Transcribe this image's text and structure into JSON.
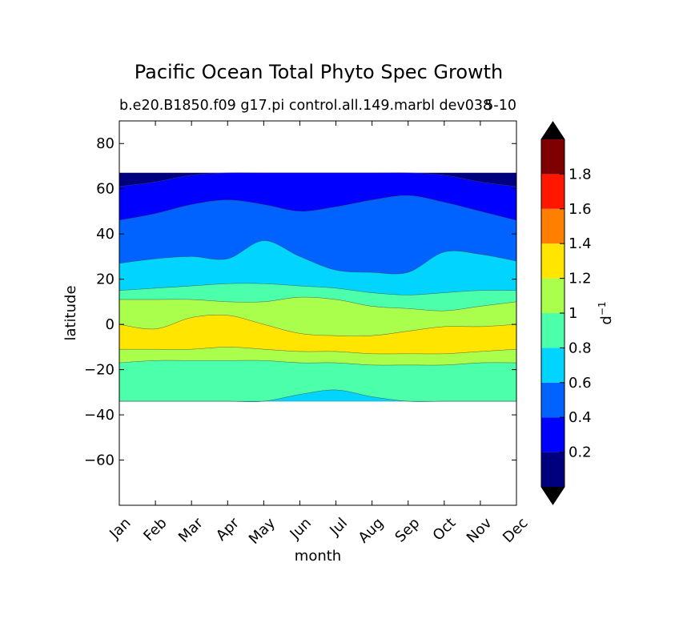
{
  "chart_data": {
    "type": "heatmap",
    "title": "Pacific Ocean Total Phyto Spec Growth",
    "subtitle_left": "b.e20.B1850.f09 g17.pi control.all.149.marbl dev038",
    "subtitle_right": "5-10",
    "xlabel": "month",
    "ylabel": "latitude",
    "x_categories": [
      "Jan",
      "Feb",
      "Mar",
      "Apr",
      "May",
      "Jun",
      "Jul",
      "Aug",
      "Sep",
      "Oct",
      "Nov",
      "Dec"
    ],
    "xlim": [
      1,
      12
    ],
    "ylim": [
      -80,
      90
    ],
    "y_ticks": [
      80,
      60,
      40,
      20,
      0,
      -20,
      -40,
      -60
    ],
    "y_tick_labels": [
      "80",
      "60",
      "40",
      "20",
      "0",
      "−20",
      "−40",
      "−60"
    ],
    "data_lat_range": [
      -34,
      67
    ],
    "colorbar": {
      "label": "d",
      "label_superscript": "−1",
      "levels": [
        0,
        0.2,
        0.4,
        0.6,
        0.8,
        1.0,
        1.2,
        1.4,
        1.6,
        1.8,
        2.0
      ],
      "tick_values": [
        0.2,
        0.4,
        0.6,
        0.8,
        1.0,
        1.2,
        1.4,
        1.6,
        1.8
      ],
      "tick_labels": [
        "0.2",
        "0.4",
        "0.6",
        "0.8",
        "1",
        "1.2",
        "1.4",
        "1.6",
        "1.8"
      ],
      "colors": [
        "#00007f",
        "#0000ff",
        "#0062ff",
        "#00d4ff",
        "#4cffaa",
        "#aaff4c",
        "#ffe500",
        "#ff7f00",
        "#ff1700",
        "#7f0000"
      ],
      "extend_min_color": "#000000",
      "extend_max_color": "#000000"
    },
    "contour_bands": [
      {
        "level": 0,
        "upper_latitude": [
          67,
          67,
          67,
          67,
          67,
          67,
          67,
          67,
          67,
          67,
          67,
          67
        ],
        "lower_latitude": [
          61,
          63,
          66,
          67,
          67,
          67,
          67,
          67,
          67,
          66,
          63,
          61
        ]
      },
      {
        "level": 1,
        "upper_latitude": [
          61,
          63,
          66,
          67,
          67,
          67,
          67,
          67,
          67,
          66,
          63,
          61
        ],
        "lower_latitude": [
          46,
          49,
          53,
          55,
          53,
          50,
          52,
          55,
          57,
          54,
          50,
          46
        ]
      },
      {
        "level": 2,
        "upper_latitude": [
          46,
          49,
          53,
          55,
          53,
          50,
          52,
          55,
          57,
          54,
          50,
          46
        ],
        "lower_latitude": [
          27,
          29,
          30,
          29,
          37,
          30,
          24,
          23,
          23,
          32,
          31,
          28
        ]
      },
      {
        "level": 3,
        "upper_latitude": [
          27,
          29,
          30,
          29,
          37,
          30,
          24,
          23,
          23,
          32,
          31,
          28
        ],
        "lower_latitude": [
          15,
          16,
          17,
          18,
          18,
          17,
          16,
          14,
          13,
          14,
          15,
          15
        ]
      },
      {
        "level": 4,
        "upper_latitude": [
          15,
          16,
          17,
          18,
          18,
          17,
          16,
          14,
          13,
          14,
          15,
          15
        ],
        "lower_latitude": [
          11,
          11,
          11,
          10,
          10,
          12,
          11,
          8,
          7,
          6,
          8,
          10
        ]
      },
      {
        "level": 5,
        "upper_latitude": [
          11,
          11,
          11,
          10,
          10,
          12,
          11,
          8,
          7,
          6,
          8,
          10
        ],
        "lower_latitude": [
          0,
          -2,
          3,
          4,
          0,
          -4,
          -5,
          -5,
          -3,
          -1,
          -1,
          0
        ]
      },
      {
        "level": 6,
        "upper_latitude": [
          0,
          -2,
          3,
          4,
          0,
          -4,
          -5,
          -5,
          -3,
          -1,
          -1,
          0
        ],
        "lower_latitude": [
          -11,
          -11,
          -11,
          -10,
          -11,
          -12,
          -12,
          -13,
          -13,
          -13,
          -12,
          -11
        ]
      },
      {
        "level": 5,
        "upper_latitude": [
          -11,
          -11,
          -11,
          -10,
          -11,
          -12,
          -12,
          -13,
          -13,
          -13,
          -12,
          -11
        ],
        "lower_latitude": [
          -17,
          -16,
          -16,
          -16,
          -16,
          -17,
          -17,
          -18,
          -18,
          -18,
          -17,
          -17
        ]
      },
      {
        "level": 4,
        "upper_latitude": [
          -17,
          -16,
          -16,
          -16,
          -16,
          -17,
          -17,
          -18,
          -18,
          -18,
          -17,
          -17
        ],
        "lower_latitude": [
          -34,
          -34,
          -34,
          -34,
          -34,
          -31,
          -29,
          -32,
          -34,
          -34,
          -34,
          -34
        ]
      },
      {
        "level": 3,
        "upper_latitude": [
          -34,
          -34,
          -34,
          -34,
          -34,
          -31,
          -29,
          -32,
          -34,
          -34,
          -34,
          -34
        ],
        "lower_latitude": [
          -34,
          -34,
          -34,
          -34,
          -34,
          -34,
          -34,
          -34,
          -34,
          -34,
          -34,
          -34
        ]
      }
    ]
  }
}
